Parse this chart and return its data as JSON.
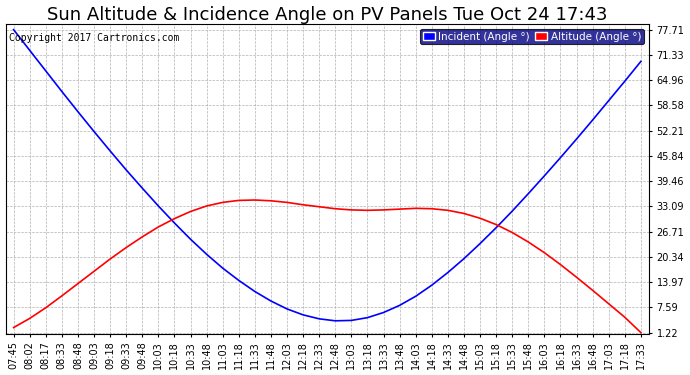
{
  "title": "Sun Altitude & Incidence Angle on PV Panels Tue Oct 24 17:43",
  "copyright": "Copyright 2017 Cartronics.com",
  "legend_incident": "Incident (Angle °)",
  "legend_altitude": "Altitude (Angle °)",
  "yticks": [
    1.22,
    7.59,
    13.97,
    20.34,
    26.71,
    33.09,
    39.46,
    45.84,
    52.21,
    58.58,
    64.96,
    71.33,
    77.71
  ],
  "ymin": 1.22,
  "ymax": 77.71,
  "incident_color": "#0000FF",
  "altitude_color": "#FF0000",
  "background_color": "#FFFFFF",
  "grid_color": "#AAAAAA",
  "title_fontsize": 13,
  "copyright_fontsize": 7,
  "legend_fontsize": 7.5,
  "tick_fontsize": 7,
  "x_times": [
    "07:45",
    "08:02",
    "08:17",
    "08:33",
    "08:48",
    "09:03",
    "09:18",
    "09:33",
    "09:48",
    "10:03",
    "10:18",
    "10:33",
    "10:48",
    "11:03",
    "11:18",
    "11:33",
    "11:48",
    "12:03",
    "12:18",
    "12:33",
    "12:48",
    "13:03",
    "13:18",
    "13:33",
    "13:48",
    "14:03",
    "14:18",
    "14:33",
    "14:48",
    "15:03",
    "15:18",
    "15:33",
    "15:48",
    "16:03",
    "16:18",
    "16:33",
    "16:48",
    "17:03",
    "17:18",
    "17:33"
  ],
  "incident_values": [
    77.71,
    72.5,
    67.3,
    62.1,
    57.0,
    52.0,
    47.1,
    42.3,
    37.7,
    33.2,
    28.9,
    24.8,
    21.0,
    17.5,
    14.4,
    11.6,
    9.2,
    7.2,
    5.7,
    4.7,
    4.2,
    4.3,
    5.0,
    6.3,
    8.1,
    10.4,
    13.2,
    16.4,
    19.9,
    23.7,
    27.7,
    31.9,
    36.3,
    40.8,
    45.4,
    50.1,
    54.9,
    59.8,
    64.7,
    69.7
  ],
  "altitude_values": [
    2.5,
    4.8,
    7.5,
    10.5,
    13.6,
    16.7,
    19.8,
    22.7,
    25.4,
    27.9,
    30.0,
    31.8,
    33.2,
    34.1,
    34.6,
    34.7,
    34.5,
    34.1,
    33.5,
    33.0,
    32.5,
    32.2,
    32.1,
    32.2,
    32.4,
    32.6,
    32.5,
    32.1,
    31.3,
    30.1,
    28.5,
    26.5,
    24.1,
    21.4,
    18.4,
    15.2,
    11.9,
    8.5,
    5.1,
    1.22
  ]
}
